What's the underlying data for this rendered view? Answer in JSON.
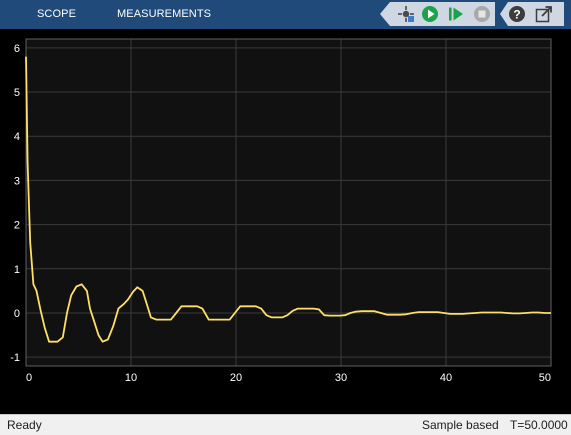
{
  "toolstrip": {
    "tabs": [
      {
        "label": "SCOPE"
      },
      {
        "label": "MEASUREMENTS"
      }
    ],
    "buttons": [
      {
        "icon": "highlight-block-icon"
      },
      {
        "icon": "run-icon"
      },
      {
        "icon": "step-forward-icon"
      },
      {
        "icon": "stop-icon"
      },
      {
        "icon": "help-icon"
      },
      {
        "icon": "undock-icon"
      }
    ]
  },
  "colors": {
    "toolstrip_bg": "#1f4a7a",
    "plot_bg": "#111111",
    "grid": "#3a3a3a",
    "signal": "#ffe066",
    "tick_text": "#ffffff",
    "run_green": "#1aa34a"
  },
  "chart_data": {
    "type": "line",
    "title": "",
    "xlabel": "",
    "ylabel": "",
    "xlim": [
      0,
      50
    ],
    "ylim": [
      -1.2,
      6.2
    ],
    "xticks": [
      "0",
      "10",
      "20",
      "30",
      "40",
      "50"
    ],
    "yticks": [
      "-1",
      "0",
      "1",
      "2",
      "3",
      "4",
      "5",
      "6"
    ],
    "grid": true,
    "legend": "none",
    "series": [
      {
        "x": [
          0,
          0.15,
          0.4,
          0.7,
          1.0,
          1.4,
          1.8,
          2.2,
          2.6,
          3.0,
          3.5,
          3.9,
          4.3,
          4.8,
          5.3,
          5.8,
          6.1,
          6.5,
          6.9,
          7.3,
          7.8,
          8.3,
          8.8,
          9.3,
          9.7,
          10.2,
          10.6,
          11.1,
          11.5,
          11.9,
          12.4,
          12.8,
          13.3,
          13.8,
          14.3,
          14.8,
          15.3,
          15.8,
          16.3,
          16.8,
          17.4,
          17.9,
          18.4,
          18.9,
          19.4,
          19.9,
          20.4,
          20.9,
          21.4,
          21.9,
          22.4,
          22.9,
          23.4,
          23.9,
          24.4,
          24.9,
          25.4,
          25.9,
          26.4,
          26.9,
          27.4,
          27.9,
          28.4,
          28.9,
          29.4,
          29.9,
          30.4,
          30.9,
          31.4,
          32.0,
          32.6,
          33.2,
          33.8,
          34.4,
          35.0,
          35.6,
          36.2,
          36.8,
          37.4,
          38.0,
          38.6,
          39.2,
          39.8,
          40.4,
          41.0,
          41.6,
          42.2,
          42.8,
          43.4,
          44.0,
          44.6,
          45.2,
          45.8,
          46.4,
          47.0,
          47.6,
          48.2,
          48.8,
          49.4,
          50.0
        ],
        "values": [
          5.8,
          3.4,
          1.6,
          0.65,
          0.5,
          0.05,
          -0.35,
          -0.65,
          -0.65,
          -0.65,
          -0.55,
          0.0,
          0.4,
          0.6,
          0.65,
          0.5,
          0.1,
          -0.2,
          -0.5,
          -0.65,
          -0.6,
          -0.3,
          0.1,
          0.2,
          0.3,
          0.48,
          0.58,
          0.5,
          0.2,
          -0.1,
          -0.15,
          -0.15,
          -0.15,
          -0.15,
          0.0,
          0.15,
          0.15,
          0.15,
          0.15,
          0.1,
          -0.15,
          -0.15,
          -0.15,
          -0.15,
          -0.15,
          0.0,
          0.15,
          0.15,
          0.15,
          0.15,
          0.1,
          -0.05,
          -0.1,
          -0.1,
          -0.1,
          -0.05,
          0.05,
          0.1,
          0.1,
          0.1,
          0.1,
          0.08,
          -0.05,
          -0.06,
          -0.06,
          -0.06,
          -0.05,
          0.0,
          0.03,
          0.04,
          0.04,
          0.04,
          0.0,
          -0.04,
          -0.04,
          -0.04,
          -0.03,
          0.0,
          0.02,
          0.02,
          0.02,
          0.02,
          0.0,
          -0.02,
          -0.02,
          -0.02,
          -0.01,
          0.0,
          0.01,
          0.01,
          0.01,
          0.01,
          0.0,
          -0.01,
          -0.01,
          0.0,
          0.01,
          0.01,
          0.0,
          0.0
        ]
      }
    ]
  },
  "status": {
    "ready": "Ready",
    "sample_mode": "Sample based",
    "time": "T=50.0000"
  }
}
